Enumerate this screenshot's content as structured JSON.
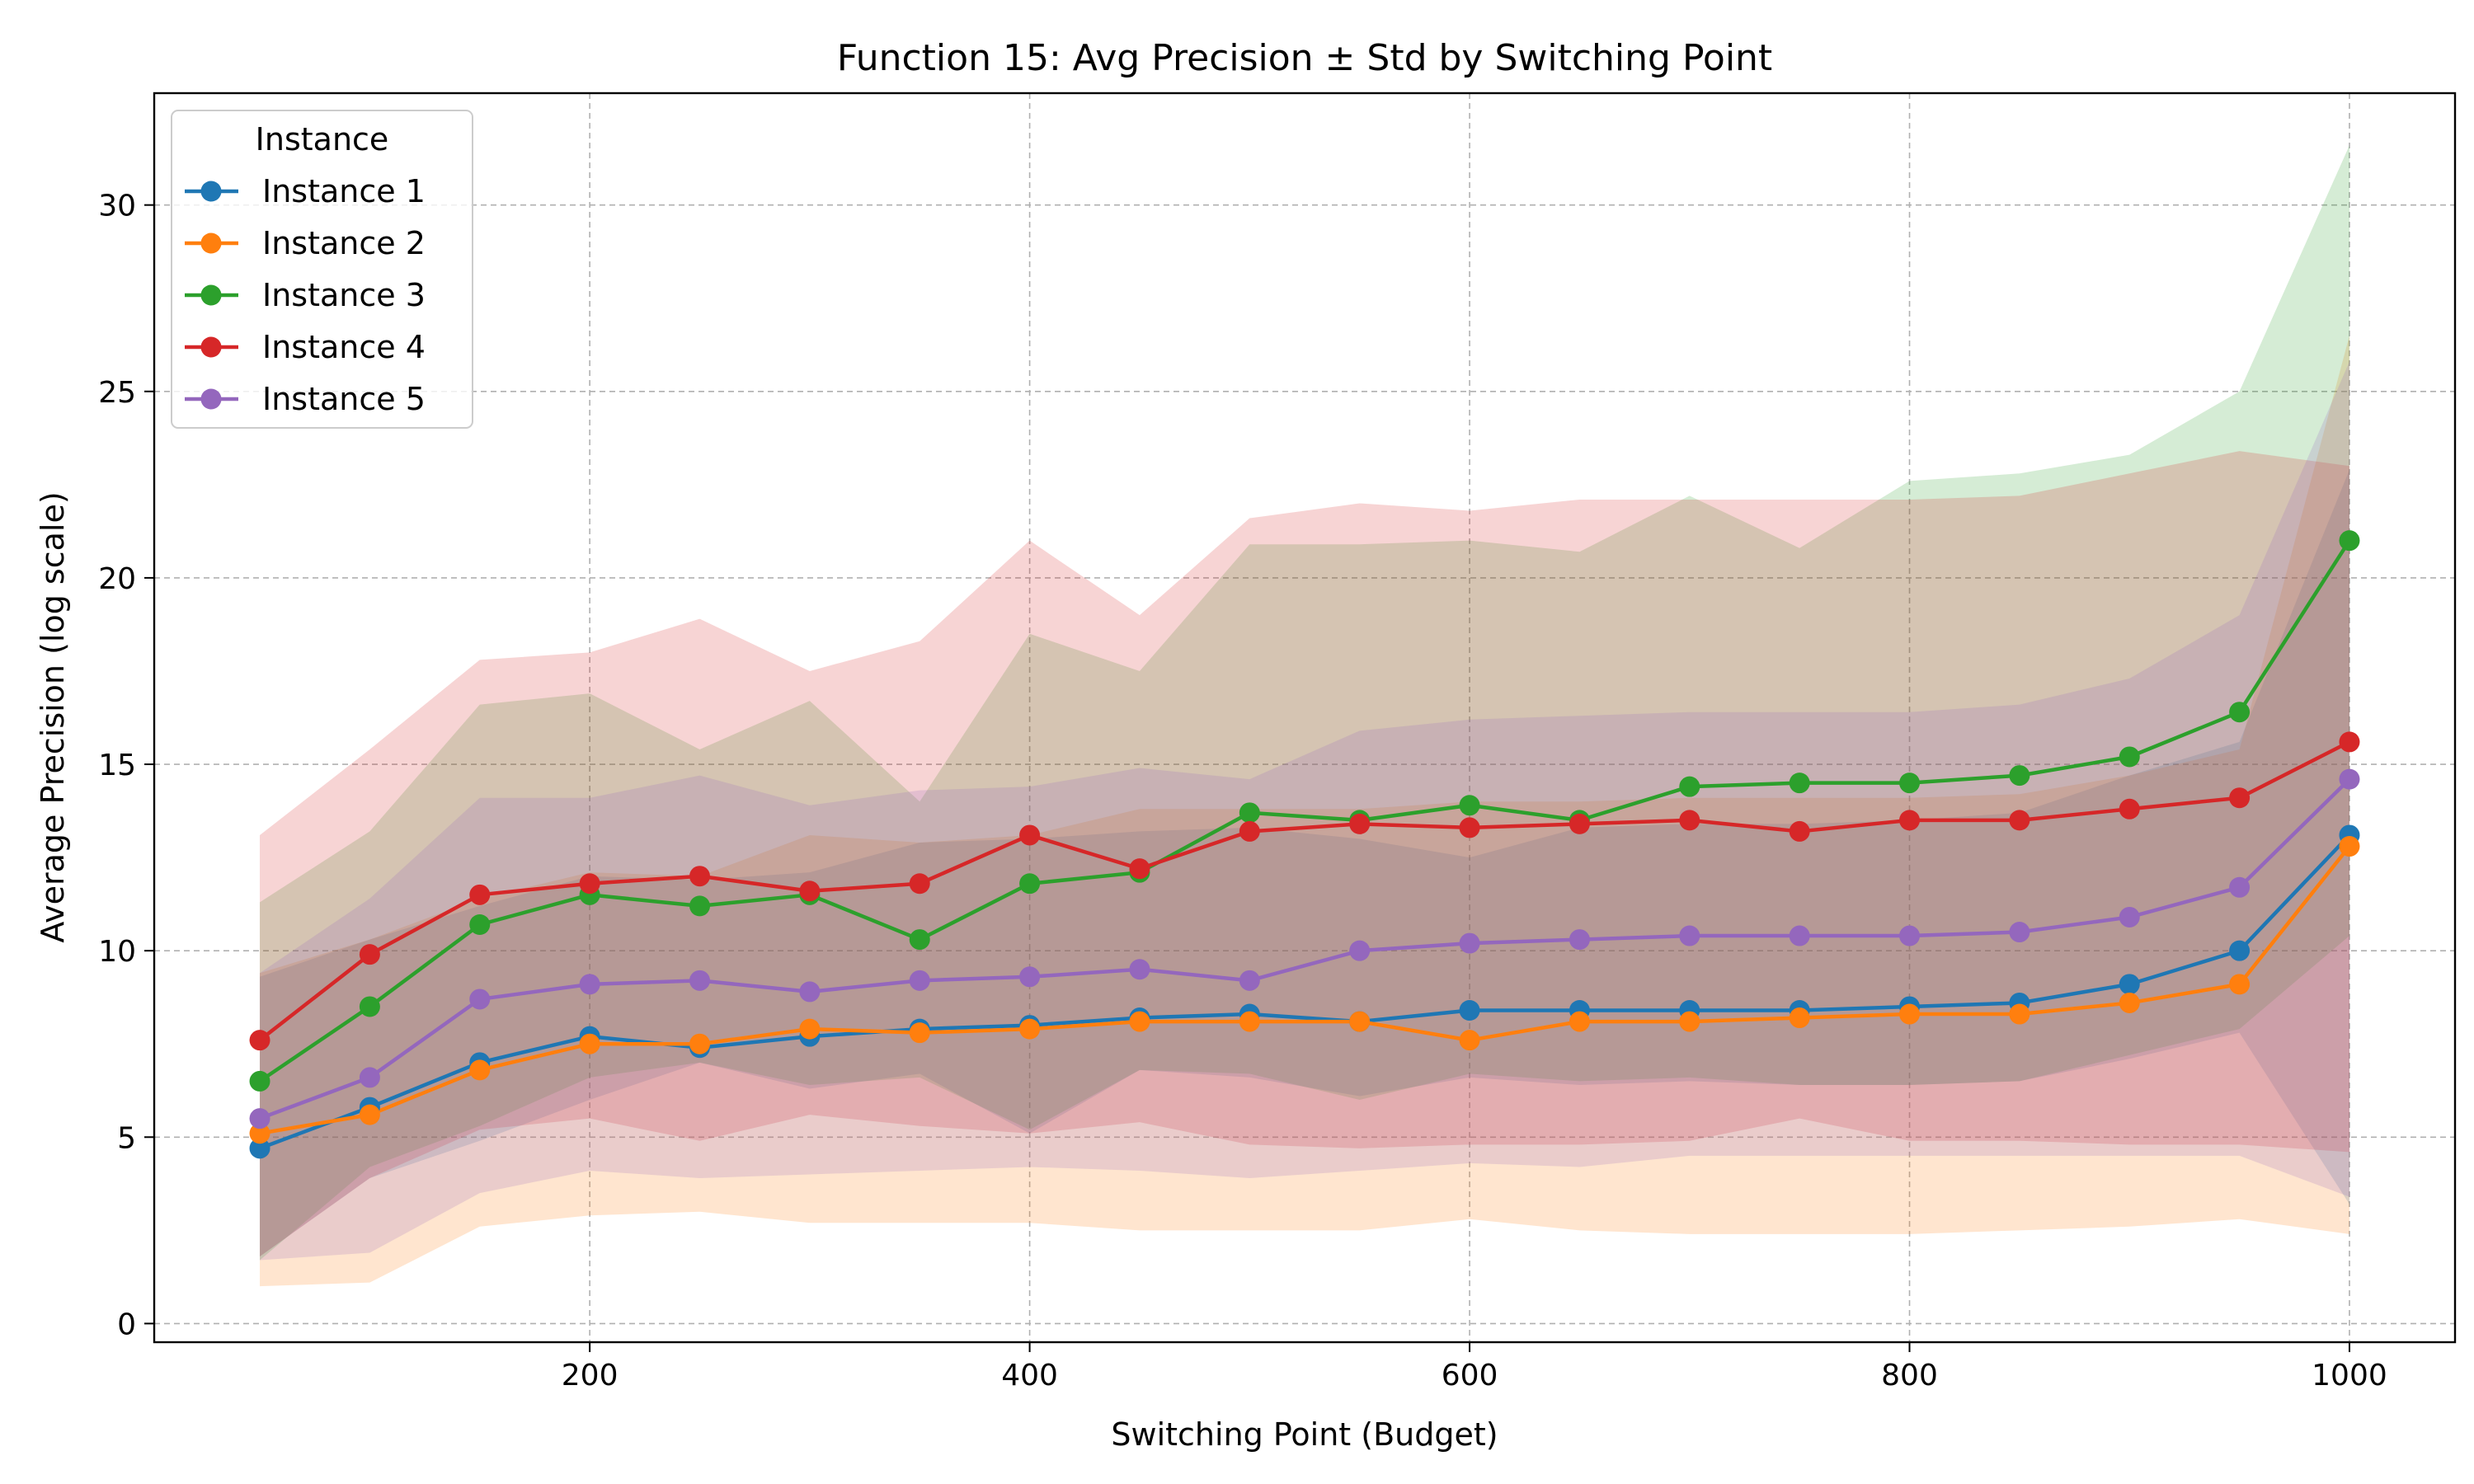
{
  "chart_data": {
    "type": "line",
    "title": "Function 15: Avg Precision ± Std by Switching Point",
    "xlabel": "Switching Point (Budget)",
    "ylabel": "Average Precision (log scale)",
    "xlim": [
      2,
      1048
    ],
    "ylim": [
      -0.5,
      33
    ],
    "xticks": [
      200,
      400,
      600,
      800,
      1000
    ],
    "yticks": [
      0,
      5,
      10,
      15,
      20,
      25,
      30
    ],
    "grid": true,
    "legend": {
      "title": "Instance",
      "placement": "top-left"
    },
    "x": [
      50,
      100,
      150,
      200,
      250,
      300,
      350,
      400,
      450,
      500,
      550,
      600,
      650,
      700,
      750,
      800,
      850,
      900,
      950,
      1000
    ],
    "series": [
      {
        "name": "Instance 1",
        "color": "#1f77b4",
        "values": [
          4.7,
          5.8,
          7.0,
          7.7,
          7.4,
          7.7,
          7.9,
          8.0,
          8.2,
          8.3,
          8.1,
          8.4,
          8.4,
          8.4,
          8.4,
          8.5,
          8.6,
          9.1,
          10.0,
          13.1
        ],
        "lower": [
          1.8,
          3.9,
          4.9,
          6.0,
          7.0,
          6.3,
          6.7,
          5.1,
          6.8,
          6.6,
          6.1,
          6.6,
          6.4,
          6.5,
          6.4,
          6.4,
          6.5,
          7.1,
          7.8,
          3.2
        ],
        "upper": [
          9.3,
          10.3,
          11.2,
          12.0,
          11.9,
          12.1,
          12.9,
          13.0,
          13.2,
          13.3,
          13.0,
          12.5,
          13.3,
          13.4,
          13.4,
          13.5,
          13.7,
          14.7,
          15.6,
          22.9
        ]
      },
      {
        "name": "Instance 2",
        "color": "#ff7f0e",
        "values": [
          5.1,
          5.6,
          6.8,
          7.5,
          7.5,
          7.9,
          7.8,
          7.9,
          8.1,
          8.1,
          8.1,
          7.6,
          8.1,
          8.1,
          8.2,
          8.3,
          8.3,
          8.6,
          9.1,
          12.8
        ],
        "lower": [
          1.0,
          1.1,
          2.6,
          2.9,
          3.0,
          2.7,
          2.7,
          2.7,
          2.5,
          2.5,
          2.5,
          2.8,
          2.5,
          2.4,
          2.4,
          2.4,
          2.5,
          2.6,
          2.8,
          2.4
        ],
        "upper": [
          9.4,
          10.3,
          11.4,
          12.1,
          12.0,
          13.1,
          12.9,
          13.1,
          13.8,
          13.8,
          13.8,
          14.0,
          14.0,
          14.1,
          14.1,
          14.1,
          14.2,
          14.7,
          15.4,
          26.5
        ]
      },
      {
        "name": "Instance 3",
        "color": "#2ca02c",
        "values": [
          6.5,
          8.5,
          10.7,
          11.5,
          11.2,
          11.5,
          10.3,
          11.8,
          12.1,
          13.7,
          13.5,
          13.9,
          13.5,
          14.4,
          14.5,
          14.5,
          14.7,
          15.2,
          16.4,
          21.0
        ],
        "lower": [
          1.7,
          4.2,
          5.3,
          6.6,
          7.0,
          6.4,
          6.6,
          5.2,
          6.8,
          6.7,
          6.0,
          6.7,
          6.5,
          6.6,
          6.4,
          6.4,
          6.5,
          7.2,
          7.9,
          10.4
        ],
        "upper": [
          11.3,
          13.2,
          16.6,
          16.9,
          15.4,
          16.7,
          14.0,
          18.5,
          17.5,
          20.9,
          20.9,
          21.0,
          20.7,
          22.2,
          20.8,
          22.6,
          22.8,
          23.3,
          25.0,
          31.6
        ]
      },
      {
        "name": "Instance 4",
        "color": "#d62728",
        "values": [
          7.6,
          9.9,
          11.5,
          11.8,
          12.0,
          11.6,
          11.8,
          13.1,
          12.2,
          13.2,
          13.4,
          13.3,
          13.4,
          13.5,
          13.2,
          13.5,
          13.5,
          13.8,
          14.1,
          15.6
        ],
        "lower": [
          1.8,
          3.9,
          5.2,
          5.5,
          4.9,
          5.6,
          5.3,
          5.1,
          5.4,
          4.8,
          4.7,
          4.8,
          4.8,
          4.9,
          5.5,
          4.9,
          4.9,
          4.8,
          4.8,
          4.6
        ],
        "upper": [
          13.1,
          15.4,
          17.8,
          18.0,
          18.9,
          17.5,
          18.3,
          21.0,
          19.0,
          21.6,
          22.0,
          21.8,
          22.1,
          22.1,
          22.1,
          22.1,
          22.2,
          22.8,
          23.4,
          23.0
        ]
      },
      {
        "name": "Instance 5",
        "color": "#9467bd",
        "values": [
          5.5,
          6.6,
          8.7,
          9.1,
          9.2,
          8.9,
          9.2,
          9.3,
          9.5,
          9.2,
          10.0,
          10.2,
          10.3,
          10.4,
          10.4,
          10.4,
          10.5,
          10.9,
          11.7,
          14.6
        ],
        "lower": [
          1.7,
          1.9,
          3.5,
          4.1,
          3.9,
          4.0,
          4.1,
          4.2,
          4.1,
          3.9,
          4.1,
          4.3,
          4.2,
          4.5,
          4.5,
          4.5,
          4.5,
          4.5,
          4.5,
          3.4
        ],
        "upper": [
          9.4,
          11.4,
          14.1,
          14.1,
          14.7,
          13.9,
          14.3,
          14.4,
          14.9,
          14.6,
          15.9,
          16.2,
          16.3,
          16.4,
          16.4,
          16.4,
          16.6,
          17.3,
          19.0,
          25.8
        ]
      }
    ]
  }
}
